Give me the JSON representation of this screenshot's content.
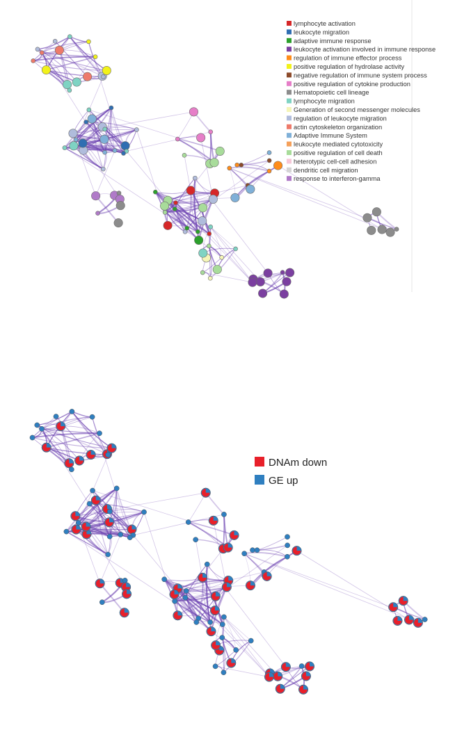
{
  "top_panel": {
    "legend": [
      {
        "label": "lymphocyte activation",
        "color": "#d62728"
      },
      {
        "label": "leukocyte migration",
        "color": "#2f6eb2"
      },
      {
        "label": "adaptive immune response",
        "color": "#2ca02c"
      },
      {
        "label": "leukocyte activation involved in immune response",
        "color": "#7b3fa0"
      },
      {
        "label": "regulation of immune effector process",
        "color": "#ff8c1a"
      },
      {
        "label": "positive regulation of hydrolase activity",
        "color": "#f2f21a"
      },
      {
        "label": "negative regulation of immune system process",
        "color": "#8c4a2a"
      },
      {
        "label": "positive regulation of cytokine production",
        "color": "#e67ec8"
      },
      {
        "label": "Hematopoietic cell lineage",
        "color": "#8c8c8c"
      },
      {
        "label": "lymphocyte migration",
        "color": "#7fd3c3"
      },
      {
        "label": "Generation of second messenger molecules",
        "color": "#f5f5b8"
      },
      {
        "label": "regulation of leukocyte migration",
        "color": "#b0bcdc"
      },
      {
        "label": "actin cytoskeleton organization",
        "color": "#ee7a6a"
      },
      {
        "label": "Adaptive Immune System",
        "color": "#7fb0d8"
      },
      {
        "label": "leukocyte mediated cytotoxicity",
        "color": "#f5a05a"
      },
      {
        "label": "positive regulation of cell death",
        "color": "#a8dc9a"
      },
      {
        "label": "heterotypic cell-cell adhesion",
        "color": "#f5c8d8"
      },
      {
        "label": "dendritic cell migration",
        "color": "#d4d4d4"
      },
      {
        "label": "response to interferon-gamma",
        "color": "#b07ac8"
      }
    ]
  },
  "bottom_panel": {
    "legend": [
      {
        "label": "DNAm down",
        "color": "#e8202a"
      },
      {
        "label": "GE up",
        "color": "#2f7fc0"
      }
    ]
  },
  "edge_color": "#6a3fb0"
}
